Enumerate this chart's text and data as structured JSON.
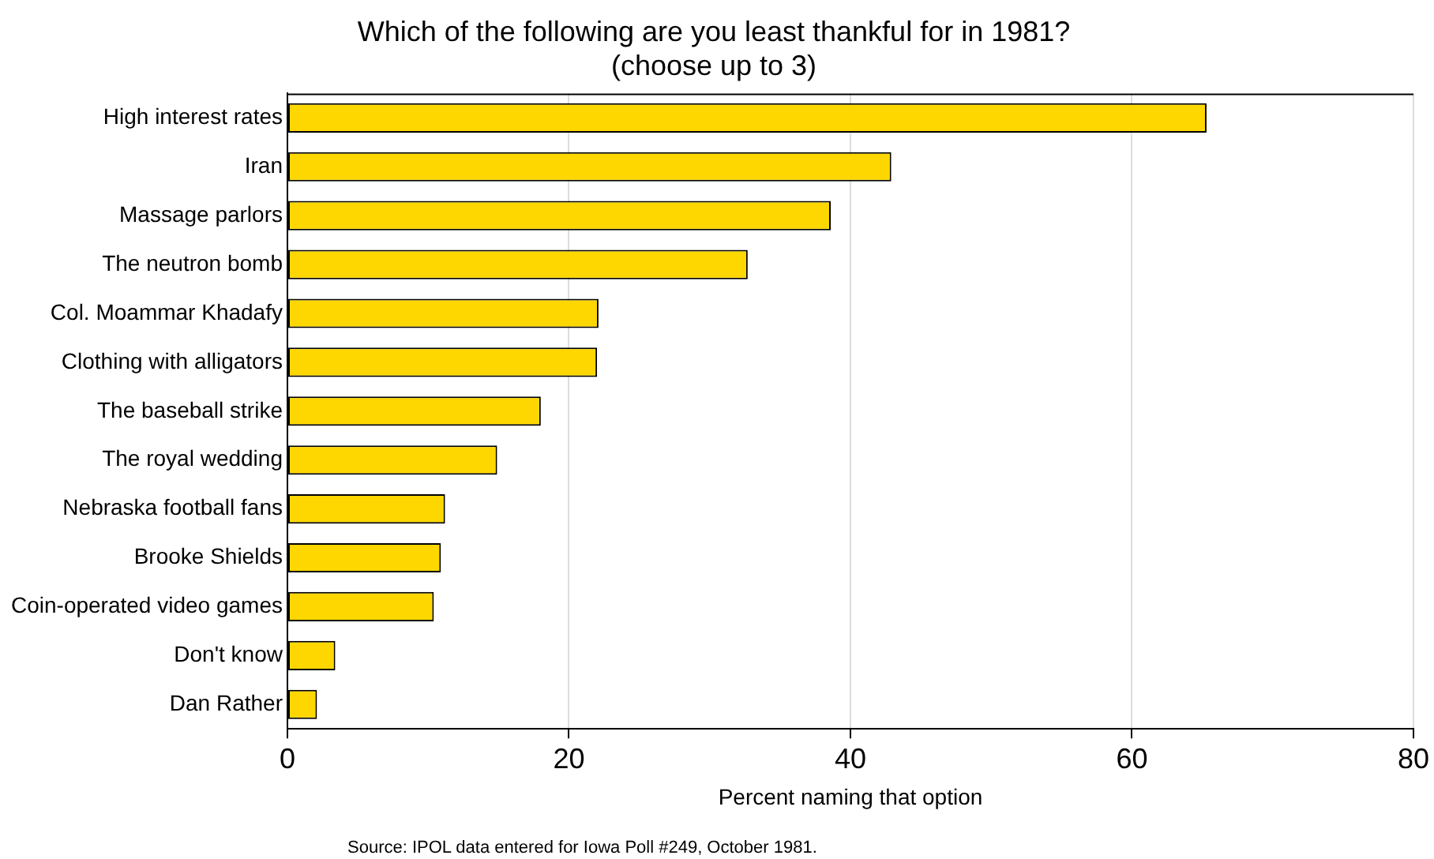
{
  "chart_data": {
    "type": "bar",
    "orientation": "horizontal",
    "title": "Which of the following are you least thankful for in 1981?",
    "subtitle": "(choose up to 3)",
    "xlabel": "Percent naming that option",
    "categories": [
      "High interest rates",
      "Iran",
      "Massage parlors",
      "The neutron bomb",
      "Col. Moammar Khadafy",
      "Clothing with alligators",
      "The baseball strike",
      "The royal wedding",
      "Nebraska football fans",
      "Brooke Shields",
      "Coin-operated video games",
      "Don't know",
      "Dan Rather"
    ],
    "values": [
      65.3,
      42.9,
      38.6,
      32.7,
      22.1,
      22.0,
      18.0,
      14.9,
      11.2,
      10.9,
      10.4,
      3.4,
      2.1
    ],
    "color": "#ffd700",
    "xlim": [
      0,
      80
    ],
    "xticks": [
      0,
      20,
      40,
      60,
      80
    ],
    "grid": "x",
    "legend": false,
    "annotations": [
      "Source: IPOL data entered for Iowa Poll #249, October 1981."
    ]
  }
}
